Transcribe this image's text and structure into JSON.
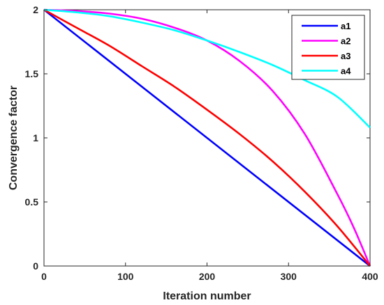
{
  "chart_data": {
    "type": "line",
    "xlabel": "Iteration number",
    "ylabel": "Convergence factor",
    "xlim": [
      0,
      400
    ],
    "ylim": [
      0,
      2
    ],
    "xticks": [
      "0",
      "100",
      "200",
      "300",
      "400"
    ],
    "yticks": [
      "0",
      "0.5",
      "1",
      "1.5",
      "2"
    ],
    "grid": false,
    "legend_position": "top-right",
    "series": [
      {
        "name": "a1",
        "color": "#0000ff",
        "x": [
          0,
          400
        ],
        "y": [
          2,
          0
        ]
      },
      {
        "name": "a2",
        "color": "#ff00ff",
        "x": [
          0,
          40,
          80,
          120,
          160,
          200,
          240,
          280,
          320,
          360,
          380,
          400
        ],
        "y": [
          2.0,
          1.99,
          1.97,
          1.93,
          1.86,
          1.76,
          1.6,
          1.37,
          1.03,
          0.56,
          0.3,
          0.0
        ]
      },
      {
        "name": "a3",
        "color": "#ff0000",
        "x": [
          0,
          40,
          80,
          120,
          160,
          200,
          240,
          280,
          320,
          360,
          400
        ],
        "y": [
          2.0,
          1.86,
          1.72,
          1.56,
          1.4,
          1.22,
          1.03,
          0.82,
          0.58,
          0.31,
          0.0
        ]
      },
      {
        "name": "a4",
        "color": "#00ffff",
        "x": [
          0,
          40,
          80,
          120,
          160,
          200,
          240,
          280,
          320,
          360,
          400
        ],
        "y": [
          2.0,
          1.98,
          1.95,
          1.9,
          1.84,
          1.76,
          1.67,
          1.57,
          1.45,
          1.32,
          1.08
        ]
      }
    ]
  }
}
